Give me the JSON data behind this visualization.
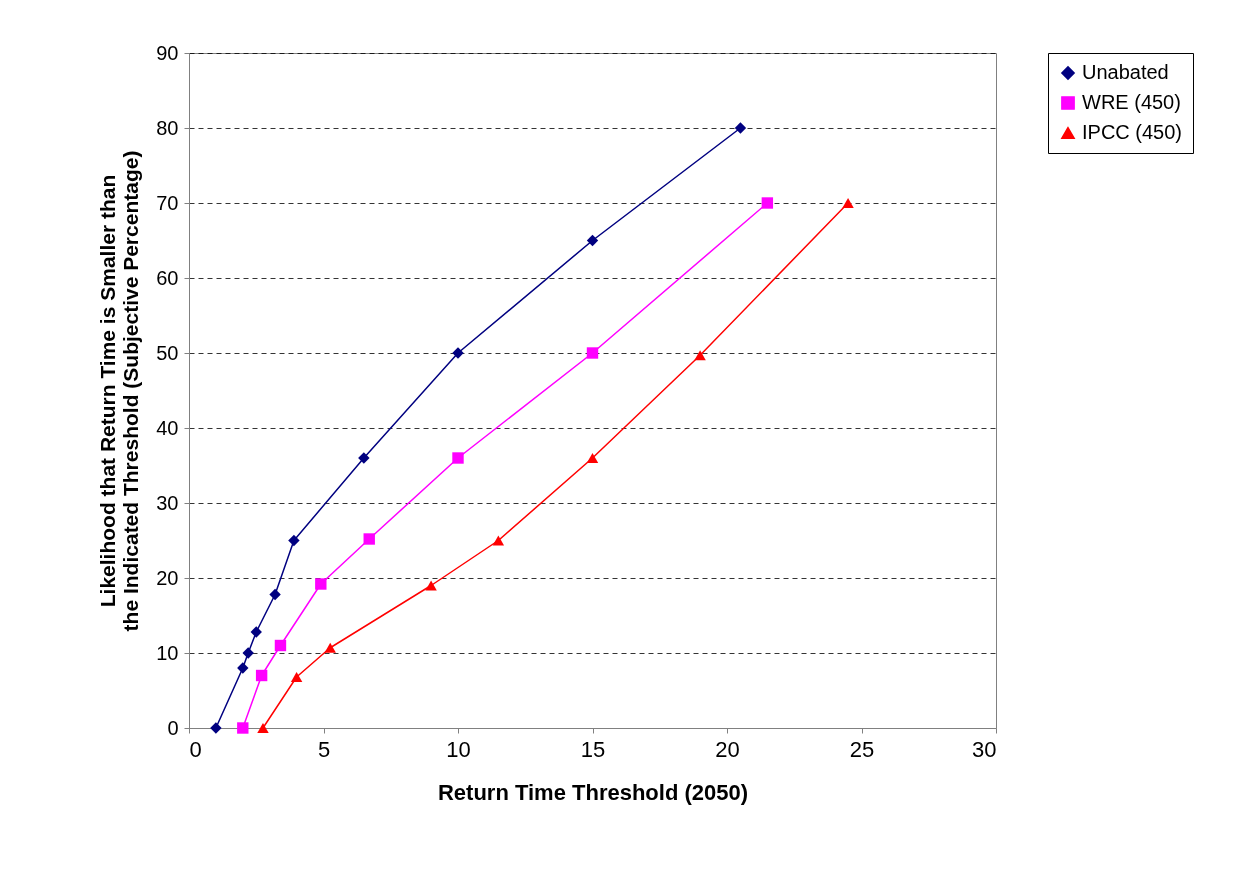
{
  "chart_data": {
    "type": "line",
    "xlabel": "Return Time Threshold (2050)",
    "ylabel": "Likelihood that Return Time is Smaller than the Indicated Threshold (Subjective Percentage)",
    "xlim": [
      0,
      30
    ],
    "xticks": [
      0,
      5,
      10,
      15,
      20,
      25,
      30
    ],
    "ylim": [
      0,
      90
    ],
    "yticks": [
      0,
      10,
      20,
      30,
      40,
      50,
      60,
      70,
      80,
      90
    ],
    "grid": "y",
    "legend": "right",
    "line_style": "solid",
    "series": [
      {
        "name": "Unabated",
        "color": "#000080",
        "marker": "diamond",
        "x": [
          1,
          2,
          2.2,
          2.5,
          3.2,
          3.9,
          6.5,
          10,
          15,
          20.5
        ],
        "values": [
          0,
          8,
          10,
          12.8,
          17.8,
          25,
          36,
          50,
          65,
          80
        ]
      },
      {
        "name": "WRE (450)",
        "color": "#ff00ff",
        "marker": "square",
        "x": [
          2,
          2.7,
          3.4,
          4.9,
          6.7,
          10,
          15,
          21.5
        ],
        "values": [
          0,
          7,
          11,
          19.2,
          25.2,
          36,
          50,
          70
        ]
      },
      {
        "name": "IPCC (450)",
        "color": "#ff0000",
        "marker": "triangle",
        "x": [
          2.75,
          4,
          5.25,
          9,
          11.5,
          15,
          19,
          24.5
        ],
        "values": [
          0,
          6.8,
          10.7,
          19,
          25,
          36,
          49.7,
          70
        ]
      }
    ]
  }
}
